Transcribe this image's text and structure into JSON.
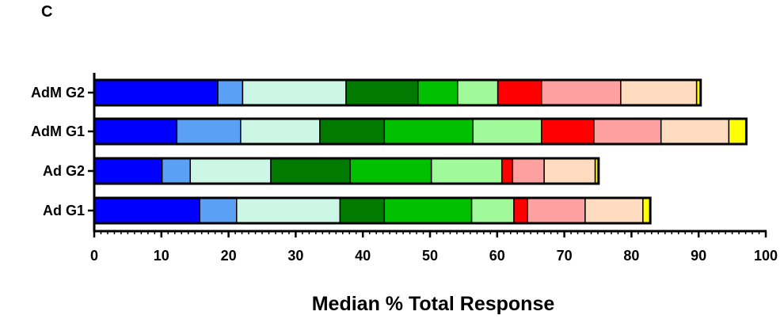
{
  "panel_label": "C",
  "chart_data": {
    "type": "bar",
    "orientation": "horizontal",
    "stacked": true,
    "title": "",
    "xlabel": "Median % Total Response",
    "ylabel": "",
    "xlim": [
      0,
      100
    ],
    "xticks": [
      0,
      10,
      20,
      30,
      40,
      50,
      60,
      70,
      80,
      90,
      100
    ],
    "xtick_labels": [
      "0",
      "10",
      "20",
      "30",
      "40",
      "50",
      "60",
      "70",
      "80",
      "90",
      "100"
    ],
    "grid": false,
    "legend": "none",
    "categories": [
      "AdM G2",
      "AdM G1",
      "Ad G2",
      "Ad G1"
    ],
    "segment_colors": [
      "#0000ff",
      "#5aa0f5",
      "#ccf7e6",
      "#007a00",
      "#00c000",
      "#a0fa9a",
      "#ff0000",
      "#ffa0a0",
      "#ffdcc0",
      "#ffff00"
    ],
    "series": [
      {
        "values": [
          18.4,
          12.3,
          10.1,
          15.7
        ]
      },
      {
        "values": [
          3.7,
          9.5,
          4.2,
          5.5
        ]
      },
      {
        "values": [
          15.4,
          11.8,
          12.0,
          15.4
        ]
      },
      {
        "values": [
          10.7,
          9.6,
          11.8,
          6.6
        ]
      },
      {
        "values": [
          5.9,
          13.2,
          12.1,
          13.0
        ]
      },
      {
        "values": [
          6.0,
          10.2,
          10.5,
          6.3
        ]
      },
      {
        "values": [
          6.5,
          7.8,
          1.6,
          2.0
        ]
      },
      {
        "values": [
          11.8,
          10.0,
          4.7,
          8.6
        ]
      },
      {
        "values": [
          11.3,
          10.1,
          7.6,
          8.6
        ]
      },
      {
        "values": [
          0.6,
          2.6,
          0.5,
          1.1
        ]
      }
    ]
  }
}
